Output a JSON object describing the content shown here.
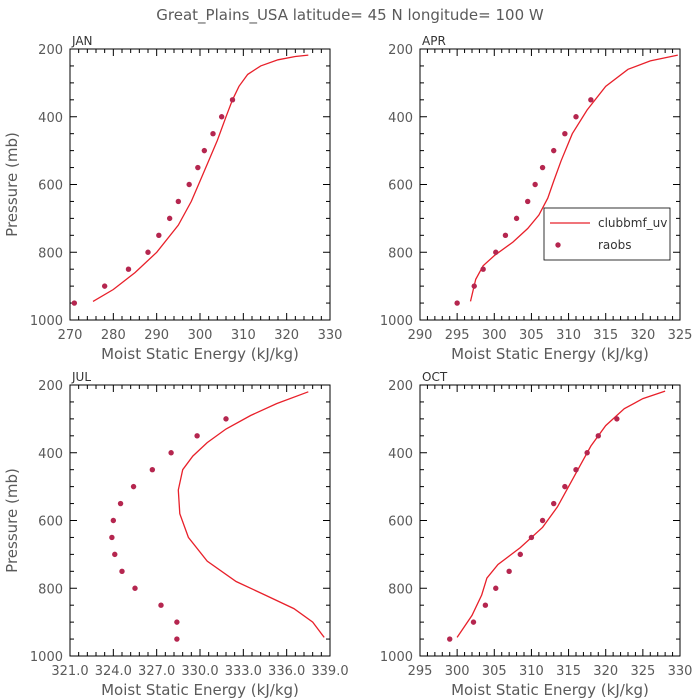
{
  "title": "Great_Plains_USA   latitude= 45 N longitude= 100 W",
  "colors": {
    "model_line": "#e8202a",
    "obs_marker": "#b5264f",
    "axis": "#000000",
    "text": "#5a5a5a"
  },
  "legend": {
    "panel": "APR",
    "placement": "right-middle",
    "entries": [
      "clubbmf_uv",
      "raobs"
    ]
  },
  "chart_data": [
    {
      "type": "line",
      "panel_label": "JAN",
      "xlabel": "Moist Static Energy (kJ/kg)",
      "ylabel": "Pressure (mb)",
      "xlim": [
        270,
        330
      ],
      "ylim": [
        1000,
        200
      ],
      "y_inverted": true,
      "xticks": [
        270,
        280,
        290,
        300,
        310,
        320,
        330
      ],
      "xtick_labels": [
        "270",
        "280",
        "290",
        "300",
        "310",
        "320",
        "330"
      ],
      "yticks": [
        200,
        400,
        600,
        800,
        1000
      ],
      "ytick_labels": [
        "200",
        "400",
        "600",
        "800",
        "1000"
      ],
      "series": [
        {
          "name": "clubbmf_uv",
          "kind": "line",
          "x": [
            275.3,
            280,
            285,
            290,
            295,
            298,
            300,
            302,
            304,
            306,
            307.5,
            309,
            311,
            314,
            318,
            322,
            325
          ],
          "y": [
            945,
            910,
            860,
            800,
            720,
            650,
            590,
            530,
            470,
            400,
            350,
            310,
            275,
            250,
            232,
            222,
            218
          ]
        },
        {
          "name": "raobs",
          "kind": "scatter",
          "x": [
            271,
            278,
            283.5,
            288,
            290.5,
            293,
            295,
            297.5,
            299.5,
            301,
            303,
            305,
            307.5
          ],
          "y": [
            950,
            900,
            850,
            800,
            750,
            700,
            650,
            600,
            550,
            500,
            450,
            400,
            350
          ]
        }
      ]
    },
    {
      "type": "line",
      "panel_label": "APR",
      "xlabel": "Moist Static Energy (kJ/kg)",
      "ylabel": "",
      "xlim": [
        290,
        325
      ],
      "ylim": [
        1000,
        200
      ],
      "y_inverted": true,
      "xticks": [
        290,
        295,
        300,
        305,
        310,
        315,
        320,
        325
      ],
      "xtick_labels": [
        "290",
        "295",
        "300",
        "305",
        "310",
        "315",
        "320",
        "325"
      ],
      "yticks": [
        200,
        400,
        600,
        800,
        1000
      ],
      "ytick_labels": [
        "200",
        "400",
        "600",
        "800",
        "1000"
      ],
      "series": [
        {
          "name": "clubbmf_uv",
          "kind": "line",
          "x": [
            296.8,
            297.5,
            298.5,
            300,
            302.5,
            304.5,
            306,
            307.2,
            308,
            309,
            310.5,
            312.5,
            315,
            318,
            321,
            324.7
          ],
          "y": [
            945,
            880,
            840,
            810,
            770,
            730,
            690,
            640,
            590,
            530,
            450,
            380,
            310,
            260,
            235,
            218
          ]
        },
        {
          "name": "raobs",
          "kind": "scatter",
          "x": [
            295,
            297.3,
            298.5,
            300.2,
            301.5,
            303,
            304.5,
            305.5,
            306.5,
            308,
            309.5,
            311,
            313
          ],
          "y": [
            950,
            900,
            850,
            800,
            750,
            700,
            650,
            600,
            550,
            500,
            450,
            400,
            350
          ]
        }
      ]
    },
    {
      "type": "line",
      "panel_label": "JUL",
      "xlabel": "Moist Static Energy (kJ/kg)",
      "ylabel": "Pressure (mb)",
      "xlim": [
        321.0,
        339.0
      ],
      "ylim": [
        1000,
        200
      ],
      "y_inverted": true,
      "xticks": [
        321,
        324,
        327,
        330,
        333,
        336,
        339
      ],
      "xtick_labels": [
        "321.0",
        "324.0",
        "327.0",
        "330.0",
        "333.0",
        "336.0",
        "339.0"
      ],
      "yticks": [
        200,
        400,
        600,
        800,
        1000
      ],
      "ytick_labels": [
        "200",
        "400",
        "600",
        "800",
        "1000"
      ],
      "series": [
        {
          "name": "clubbmf_uv",
          "kind": "line",
          "x": [
            338.6,
            337.8,
            336.5,
            334.5,
            332.5,
            330.5,
            329.2,
            328.6,
            328.5,
            328.8,
            329.5,
            330.5,
            331.8,
            333.5,
            335.3,
            337.5
          ],
          "y": [
            945,
            900,
            860,
            820,
            780,
            720,
            650,
            580,
            510,
            450,
            410,
            370,
            330,
            290,
            255,
            220
          ]
        },
        {
          "name": "raobs",
          "kind": "scatter",
          "x": [
            328.4,
            328.4,
            327.3,
            325.5,
            324.6,
            324.1,
            323.9,
            324.0,
            324.5,
            325.4,
            326.7,
            328.0,
            329.8,
            331.8
          ],
          "y": [
            950,
            900,
            850,
            800,
            750,
            700,
            650,
            600,
            550,
            500,
            450,
            400,
            350,
            300
          ]
        }
      ]
    },
    {
      "type": "line",
      "panel_label": "OCT",
      "xlabel": "Moist Static Energy (kJ/kg)",
      "ylabel": "",
      "xlim": [
        295,
        330
      ],
      "ylim": [
        1000,
        200
      ],
      "y_inverted": true,
      "xticks": [
        295,
        300,
        305,
        310,
        315,
        320,
        325,
        330
      ],
      "xtick_labels": [
        "295",
        "300",
        "305",
        "310",
        "315",
        "320",
        "325",
        "330"
      ],
      "yticks": [
        200,
        400,
        600,
        800,
        1000
      ],
      "ytick_labels": [
        "200",
        "400",
        "600",
        "800",
        "1000"
      ],
      "series": [
        {
          "name": "clubbmf_uv",
          "kind": "line",
          "x": [
            300,
            302,
            303.3,
            304,
            305.5,
            308.5,
            311.5,
            313.5,
            315,
            316.5,
            318,
            320,
            322.5,
            325,
            328
          ],
          "y": [
            945,
            880,
            820,
            770,
            730,
            680,
            620,
            560,
            500,
            440,
            380,
            320,
            270,
            240,
            218
          ]
        },
        {
          "name": "raobs",
          "kind": "scatter",
          "x": [
            299,
            302.2,
            303.8,
            305.2,
            307,
            308.5,
            310,
            311.5,
            313,
            314.5,
            316,
            317.5,
            319,
            321.5
          ],
          "y": [
            950,
            900,
            850,
            800,
            750,
            700,
            650,
            600,
            550,
            500,
            450,
            400,
            350,
            300
          ]
        }
      ]
    }
  ]
}
